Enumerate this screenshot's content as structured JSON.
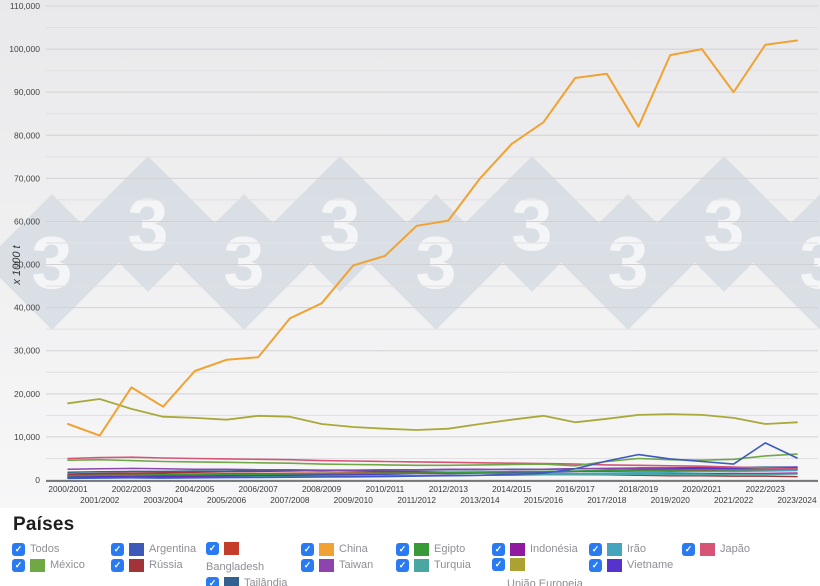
{
  "chart": {
    "y_axis_label": "x 1000 t",
    "y_tick_step": 10000,
    "y_minor_step": 5000,
    "watermark_text": "3",
    "watermark_color": "#c9d2dd",
    "axis_line_color": "#58595b",
    "grid_major_color": "#d2d2d5",
    "grid_minor_color": "#e0e0e3",
    "bg_top": "#e9e9eb",
    "bg_bottom": "#f7f7f8"
  },
  "chart_data": {
    "type": "line",
    "title": "",
    "xlabel": "",
    "ylabel": "x 1000 t",
    "ylim": [
      0,
      110000
    ],
    "grid": true,
    "legend_position": "bottom",
    "categories": [
      "2000/2001",
      "2001/2002",
      "2002/2003",
      "2003/2004",
      "2004/2005",
      "2005/2006",
      "2006/2007",
      "2007/2008",
      "2008/2009",
      "2009/2010",
      "2010/2011",
      "2011/2012",
      "2012/2013",
      "2013/2014",
      "2014/2015",
      "2015/2016",
      "2016/2017",
      "2017/2018",
      "2018/2019",
      "2019/2020",
      "2020/2021",
      "2021/2022",
      "2022/2023",
      "2023/2024"
    ],
    "series": [
      {
        "name": "Bangladesh",
        "color": "#C43D28",
        "width": 1.5,
        "values": [
          1200,
          1250,
          1300,
          1350,
          1400,
          1450,
          1500,
          1550,
          1600,
          1650,
          1700,
          1750,
          1800,
          1850,
          1900,
          1950,
          2000,
          2050,
          2100,
          2150,
          2200,
          2250,
          2300,
          2350
        ]
      },
      {
        "name": "Rússia",
        "color": "#A23338",
        "width": 1.5,
        "values": [
          1400,
          1500,
          1600,
          1700,
          1800,
          1900,
          2000,
          2100,
          2200,
          2100,
          2000,
          1900,
          1800,
          1700,
          1500,
          1400,
          1300,
          1200,
          1100,
          1000,
          1000,
          900,
          900,
          800
        ]
      },
      {
        "name": "Tailândia",
        "color": "#33618F",
        "width": 1.5,
        "values": [
          1800,
          1900,
          2000,
          2000,
          2100,
          2100,
          2200,
          2200,
          2100,
          2200,
          2300,
          2300,
          2400,
          2400,
          2500,
          2500,
          2600,
          2700,
          2800,
          2800,
          2900,
          2900,
          3000,
          3000
        ]
      },
      {
        "name": "Taiwan",
        "color": "#8E44AD",
        "width": 1.5,
        "values": [
          2500,
          2600,
          2700,
          2600,
          2500,
          2500,
          2400,
          2400,
          2300,
          2300,
          2400,
          2400,
          2500,
          2500,
          2400,
          2500,
          2600,
          2600,
          2700,
          2600,
          2600,
          2700,
          2600,
          2700
        ]
      },
      {
        "name": "Indonésia",
        "color": "#8F1A9F",
        "width": 1.5,
        "values": [
          600,
          600,
          700,
          700,
          800,
          800,
          800,
          900,
          900,
          1000,
          1000,
          1000,
          1100,
          1100,
          1200,
          1200,
          1200,
          1300,
          1300,
          1400,
          1400,
          1500,
          1500,
          1600
        ]
      },
      {
        "name": "Irão",
        "color": "#45A5BC",
        "width": 1.5,
        "values": [
          1000,
          1000,
          1100,
          1100,
          1000,
          1000,
          1100,
          1200,
          1200,
          1300,
          1400,
          1500,
          1500,
          1600,
          1700,
          1600,
          1500,
          1600,
          1700,
          1800,
          1900,
          2000,
          2100,
          2200
        ]
      },
      {
        "name": "Turquia",
        "color": "#49A6A0",
        "width": 1.5,
        "values": [
          800,
          900,
          900,
          1000,
          1000,
          900,
          900,
          1000,
          1000,
          1100,
          1100,
          1000,
          1000,
          1100,
          1100,
          1200,
          1200,
          1300,
          1300,
          1200,
          1200,
          1300,
          1300,
          1400
        ]
      },
      {
        "name": "Vietname",
        "color": "#5633CC",
        "width": 1.5,
        "values": [
          800,
          800,
          900,
          900,
          1000,
          1000,
          1100,
          1100,
          1200,
          1300,
          1400,
          1500,
          1600,
          1700,
          1800,
          1900,
          2000,
          2200,
          2400,
          2500,
          2700,
          2600,
          2800,
          3000
        ]
      },
      {
        "name": "Egipto",
        "color": "#3A9A3A",
        "width": 1.5,
        "values": [
          1000,
          1100,
          1100,
          1200,
          1200,
          1300,
          1300,
          1400,
          1500,
          1500,
          1600,
          1600,
          1700,
          1800,
          1900,
          2000,
          2100,
          2200,
          2300,
          2300,
          2400,
          2400,
          2500,
          2500
        ]
      },
      {
        "name": "Japão",
        "color": "#D65577",
        "width": 1.6,
        "values": [
          5000,
          5200,
          5300,
          5100,
          5000,
          4900,
          4800,
          4700,
          4500,
          4400,
          4300,
          4200,
          4100,
          4000,
          3900,
          3800,
          3700,
          3500,
          3400,
          3300,
          3200,
          3000,
          2800,
          2600
        ]
      },
      {
        "name": "México",
        "color": "#6FA845",
        "width": 1.6,
        "values": [
          4600,
          4700,
          4500,
          4300,
          4200,
          4100,
          4000,
          3900,
          3700,
          3600,
          3500,
          3400,
          3400,
          3500,
          3600,
          3700,
          3300,
          4300,
          5000,
          4700,
          4600,
          4800,
          5600,
          6000
        ]
      },
      {
        "name": "Argentina",
        "color": "#3D5BC0",
        "width": 1.6,
        "values": [
          400,
          450,
          500,
          450,
          500,
          550,
          600,
          650,
          700,
          750,
          800,
          900,
          1000,
          1100,
          1300,
          1600,
          2600,
          4400,
          5900,
          4900,
          4300,
          3700,
          8600,
          5100
        ]
      },
      {
        "name": "União Europeia",
        "color": "#A9A93B",
        "width": 1.8,
        "values": [
          17800,
          18800,
          16500,
          14700,
          14400,
          14000,
          14900,
          14700,
          13000,
          12300,
          11900,
          11600,
          11900,
          13000,
          14000,
          14900,
          13400,
          14200,
          15100,
          15300,
          15100,
          14400,
          13000,
          13400
        ]
      },
      {
        "name": "China",
        "color": "#F0A232",
        "width": 2,
        "values": [
          13000,
          10300,
          21500,
          17000,
          25300,
          27900,
          28500,
          37500,
          41000,
          49800,
          52000,
          59000,
          60200,
          70000,
          78000,
          83000,
          93300,
          94300,
          82000,
          98600,
          100000,
          90000,
          101000,
          102000
        ]
      }
    ]
  },
  "legend": {
    "title": "Países",
    "items": [
      {
        "label": "Todos",
        "checked": true
      },
      {
        "label": "México",
        "color": "#6FA845",
        "checked": true
      },
      {
        "label": "Argentina",
        "color": "#3D5AB8",
        "checked": true
      },
      {
        "label": "Rússia",
        "color": "#A23338",
        "checked": true
      },
      {
        "label": "Bangladesh",
        "color": "#C43D28",
        "checked": true
      },
      {
        "label": "Tailândia",
        "color": "#33618F",
        "checked": true
      },
      {
        "label": "China",
        "color": "#F0A232",
        "checked": true
      },
      {
        "label": "Taiwan",
        "color": "#8E44AD",
        "checked": true
      },
      {
        "label": "Egipto",
        "color": "#3A9A3A",
        "checked": true
      },
      {
        "label": "Turquia",
        "color": "#49A6A0",
        "checked": true
      },
      {
        "label": "Indonésia",
        "color": "#8F1A9F",
        "checked": true
      },
      {
        "label": "União Europeia",
        "color": "#ABA233",
        "checked": true
      },
      {
        "label": "Irão",
        "color": "#45A5BC",
        "checked": true
      },
      {
        "label": "Vietname",
        "color": "#5633CC",
        "checked": true
      },
      {
        "label": "Japão",
        "color": "#D65577",
        "checked": true
      }
    ],
    "check_glyph": "✓"
  }
}
